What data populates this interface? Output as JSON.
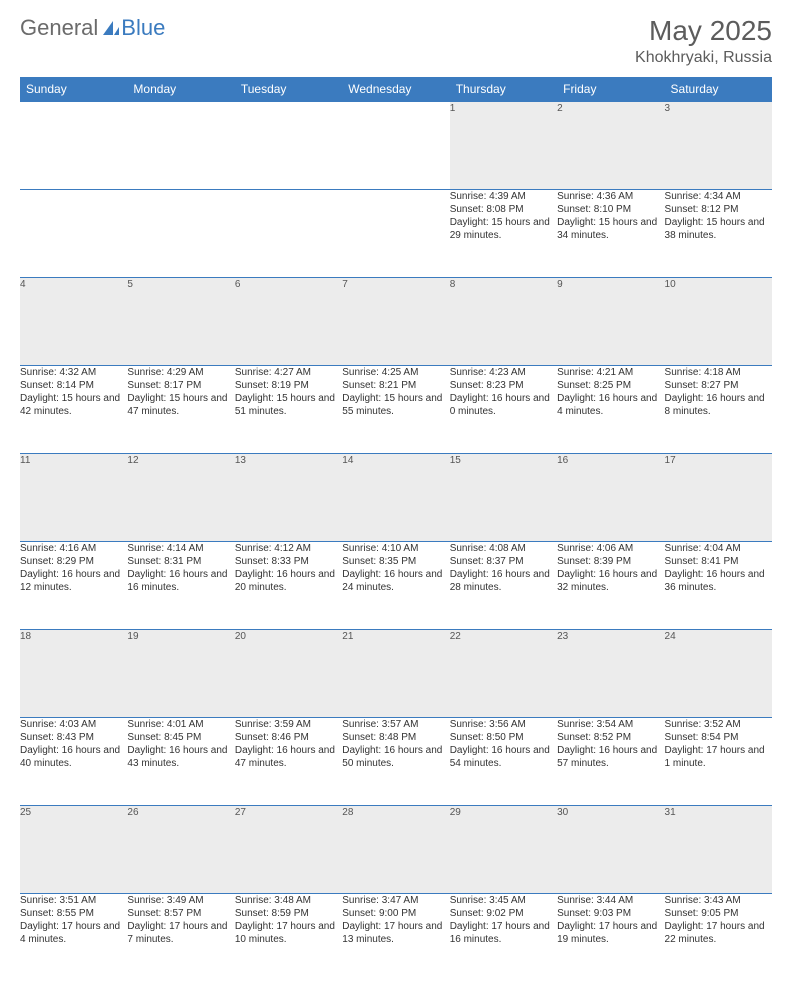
{
  "logo": {
    "text1": "General",
    "text2": "Blue"
  },
  "title": "May 2025",
  "location": "Khokhryaki, Russia",
  "accent_color": "#3b7bbf",
  "daynum_bg": "#ececec",
  "text_color": "#333333",
  "day_headers": [
    "Sunday",
    "Monday",
    "Tuesday",
    "Wednesday",
    "Thursday",
    "Friday",
    "Saturday"
  ],
  "weeks": [
    [
      null,
      null,
      null,
      null,
      {
        "n": "1",
        "sr": "Sunrise: 4:39 AM",
        "ss": "Sunset: 8:08 PM",
        "dl": "Daylight: 15 hours and 29 minutes."
      },
      {
        "n": "2",
        "sr": "Sunrise: 4:36 AM",
        "ss": "Sunset: 8:10 PM",
        "dl": "Daylight: 15 hours and 34 minutes."
      },
      {
        "n": "3",
        "sr": "Sunrise: 4:34 AM",
        "ss": "Sunset: 8:12 PM",
        "dl": "Daylight: 15 hours and 38 minutes."
      }
    ],
    [
      {
        "n": "4",
        "sr": "Sunrise: 4:32 AM",
        "ss": "Sunset: 8:14 PM",
        "dl": "Daylight: 15 hours and 42 minutes."
      },
      {
        "n": "5",
        "sr": "Sunrise: 4:29 AM",
        "ss": "Sunset: 8:17 PM",
        "dl": "Daylight: 15 hours and 47 minutes."
      },
      {
        "n": "6",
        "sr": "Sunrise: 4:27 AM",
        "ss": "Sunset: 8:19 PM",
        "dl": "Daylight: 15 hours and 51 minutes."
      },
      {
        "n": "7",
        "sr": "Sunrise: 4:25 AM",
        "ss": "Sunset: 8:21 PM",
        "dl": "Daylight: 15 hours and 55 minutes."
      },
      {
        "n": "8",
        "sr": "Sunrise: 4:23 AM",
        "ss": "Sunset: 8:23 PM",
        "dl": "Daylight: 16 hours and 0 minutes."
      },
      {
        "n": "9",
        "sr": "Sunrise: 4:21 AM",
        "ss": "Sunset: 8:25 PM",
        "dl": "Daylight: 16 hours and 4 minutes."
      },
      {
        "n": "10",
        "sr": "Sunrise: 4:18 AM",
        "ss": "Sunset: 8:27 PM",
        "dl": "Daylight: 16 hours and 8 minutes."
      }
    ],
    [
      {
        "n": "11",
        "sr": "Sunrise: 4:16 AM",
        "ss": "Sunset: 8:29 PM",
        "dl": "Daylight: 16 hours and 12 minutes."
      },
      {
        "n": "12",
        "sr": "Sunrise: 4:14 AM",
        "ss": "Sunset: 8:31 PM",
        "dl": "Daylight: 16 hours and 16 minutes."
      },
      {
        "n": "13",
        "sr": "Sunrise: 4:12 AM",
        "ss": "Sunset: 8:33 PM",
        "dl": "Daylight: 16 hours and 20 minutes."
      },
      {
        "n": "14",
        "sr": "Sunrise: 4:10 AM",
        "ss": "Sunset: 8:35 PM",
        "dl": "Daylight: 16 hours and 24 minutes."
      },
      {
        "n": "15",
        "sr": "Sunrise: 4:08 AM",
        "ss": "Sunset: 8:37 PM",
        "dl": "Daylight: 16 hours and 28 minutes."
      },
      {
        "n": "16",
        "sr": "Sunrise: 4:06 AM",
        "ss": "Sunset: 8:39 PM",
        "dl": "Daylight: 16 hours and 32 minutes."
      },
      {
        "n": "17",
        "sr": "Sunrise: 4:04 AM",
        "ss": "Sunset: 8:41 PM",
        "dl": "Daylight: 16 hours and 36 minutes."
      }
    ],
    [
      {
        "n": "18",
        "sr": "Sunrise: 4:03 AM",
        "ss": "Sunset: 8:43 PM",
        "dl": "Daylight: 16 hours and 40 minutes."
      },
      {
        "n": "19",
        "sr": "Sunrise: 4:01 AM",
        "ss": "Sunset: 8:45 PM",
        "dl": "Daylight: 16 hours and 43 minutes."
      },
      {
        "n": "20",
        "sr": "Sunrise: 3:59 AM",
        "ss": "Sunset: 8:46 PM",
        "dl": "Daylight: 16 hours and 47 minutes."
      },
      {
        "n": "21",
        "sr": "Sunrise: 3:57 AM",
        "ss": "Sunset: 8:48 PM",
        "dl": "Daylight: 16 hours and 50 minutes."
      },
      {
        "n": "22",
        "sr": "Sunrise: 3:56 AM",
        "ss": "Sunset: 8:50 PM",
        "dl": "Daylight: 16 hours and 54 minutes."
      },
      {
        "n": "23",
        "sr": "Sunrise: 3:54 AM",
        "ss": "Sunset: 8:52 PM",
        "dl": "Daylight: 16 hours and 57 minutes."
      },
      {
        "n": "24",
        "sr": "Sunrise: 3:52 AM",
        "ss": "Sunset: 8:54 PM",
        "dl": "Daylight: 17 hours and 1 minute."
      }
    ],
    [
      {
        "n": "25",
        "sr": "Sunrise: 3:51 AM",
        "ss": "Sunset: 8:55 PM",
        "dl": "Daylight: 17 hours and 4 minutes."
      },
      {
        "n": "26",
        "sr": "Sunrise: 3:49 AM",
        "ss": "Sunset: 8:57 PM",
        "dl": "Daylight: 17 hours and 7 minutes."
      },
      {
        "n": "27",
        "sr": "Sunrise: 3:48 AM",
        "ss": "Sunset: 8:59 PM",
        "dl": "Daylight: 17 hours and 10 minutes."
      },
      {
        "n": "28",
        "sr": "Sunrise: 3:47 AM",
        "ss": "Sunset: 9:00 PM",
        "dl": "Daylight: 17 hours and 13 minutes."
      },
      {
        "n": "29",
        "sr": "Sunrise: 3:45 AM",
        "ss": "Sunset: 9:02 PM",
        "dl": "Daylight: 17 hours and 16 minutes."
      },
      {
        "n": "30",
        "sr": "Sunrise: 3:44 AM",
        "ss": "Sunset: 9:03 PM",
        "dl": "Daylight: 17 hours and 19 minutes."
      },
      {
        "n": "31",
        "sr": "Sunrise: 3:43 AM",
        "ss": "Sunset: 9:05 PM",
        "dl": "Daylight: 17 hours and 22 minutes."
      }
    ]
  ]
}
